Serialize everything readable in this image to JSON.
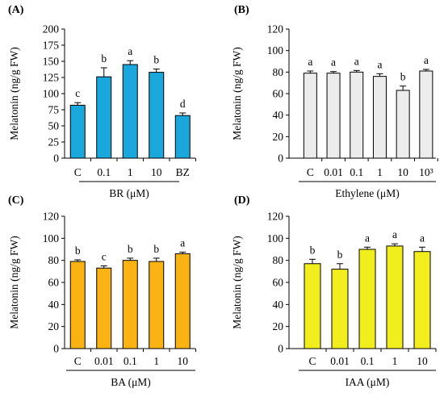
{
  "figure": {
    "ylabel": "Melatonin (ng/g FW)"
  },
  "chart_data": [
    {
      "type": "bar",
      "panel": "(A)",
      "categories": [
        "C",
        "0.1",
        "1",
        "10",
        "BZ"
      ],
      "values": [
        82,
        126,
        145,
        133,
        66
      ],
      "errors": [
        4,
        14,
        6,
        5,
        4
      ],
      "letters": [
        "c",
        "b",
        "a",
        "b",
        "d"
      ],
      "xlabel": "BR (μM)",
      "ylabel": "Melatonin (ng/g FW)",
      "ylim": [
        0,
        200
      ],
      "yticks": [
        "0",
        "25",
        "50",
        "75",
        "100",
        "125",
        "150",
        "175",
        "200"
      ],
      "color": "#1aa7dc"
    },
    {
      "type": "bar",
      "panel": "(B)",
      "categories": [
        "C",
        "0.01",
        "0.1",
        "1",
        "10",
        "10³"
      ],
      "values": [
        79,
        79,
        80,
        76,
        63,
        81
      ],
      "errors": [
        2,
        1.5,
        1.5,
        2.5,
        4,
        1.5
      ],
      "letters": [
        "a",
        "a",
        "a",
        "a",
        "b",
        "a"
      ],
      "xlabel": "Ethylene (μM)",
      "ylabel": "Melatonin (ng/g FW)",
      "ylim": [
        0,
        120
      ],
      "yticks": [
        "0",
        "20",
        "40",
        "60",
        "80",
        "100",
        "120"
      ],
      "color": "#ececec"
    },
    {
      "type": "bar",
      "panel": "(C)",
      "categories": [
        "C",
        "0.01",
        "0.1",
        "1",
        "10"
      ],
      "values": [
        79,
        73,
        80,
        79,
        86
      ],
      "errors": [
        1.5,
        2,
        2,
        3,
        1.5
      ],
      "letters": [
        "b",
        "c",
        "b",
        "b",
        "a"
      ],
      "xlabel": "BA (μM)",
      "ylabel": "Melatonin (ng/g FW)",
      "ylim": [
        0,
        120
      ],
      "yticks": [
        "0",
        "20",
        "40",
        "60",
        "80",
        "100",
        "120"
      ],
      "color": "#fbb313"
    },
    {
      "type": "bar",
      "panel": "(D)",
      "categories": [
        "C",
        "0.01",
        "0.1",
        "1",
        "10"
      ],
      "values": [
        77,
        72,
        90,
        93,
        88
      ],
      "errors": [
        4,
        5,
        2,
        2,
        4
      ],
      "letters": [
        "b",
        "b",
        "a",
        "a",
        "a"
      ],
      "xlabel": "IAA (μM)",
      "ylabel": "Melatonin (ng/g FW)",
      "ylim": [
        0,
        120
      ],
      "yticks": [
        "0",
        "20",
        "40",
        "60",
        "80",
        "100",
        "120"
      ],
      "color": "#f2ee1e"
    }
  ]
}
